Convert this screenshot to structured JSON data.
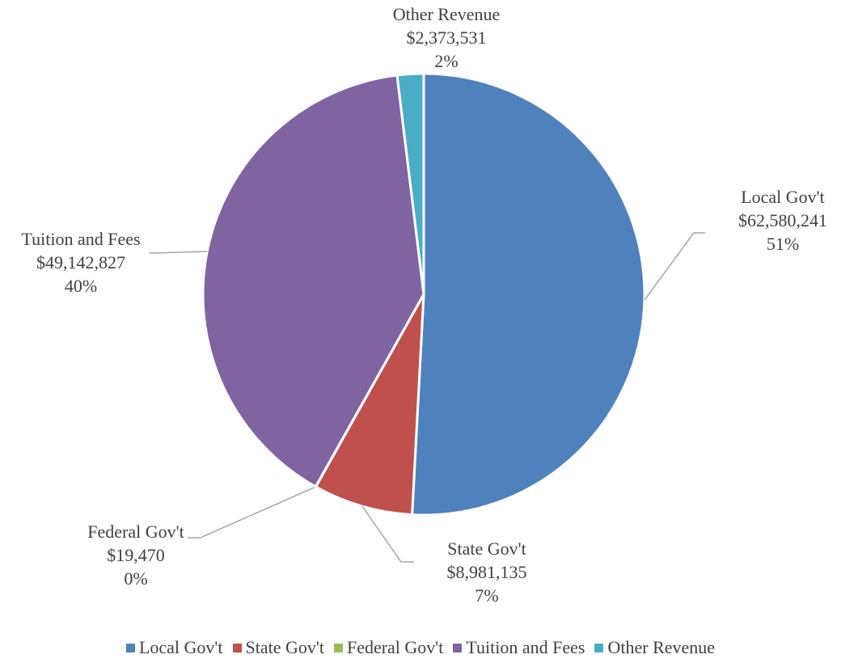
{
  "chart_data": {
    "type": "pie",
    "title": "",
    "slices": [
      {
        "name": "Local Gov't",
        "value": 62580241,
        "value_label": "$62,580,241",
        "percent_label": "51%",
        "color": "#4F81BD"
      },
      {
        "name": "State Gov't",
        "value": 8981135,
        "value_label": "$8,981,135",
        "percent_label": "7%",
        "color": "#C0504D"
      },
      {
        "name": "Federal Gov't",
        "value": 19470,
        "value_label": "$19,470",
        "percent_label": "0%",
        "color": "#9BBB59"
      },
      {
        "name": "Tuition and Fees",
        "value": 49142827,
        "value_label": "$49,142,827",
        "percent_label": "40%",
        "color": "#8064A2"
      },
      {
        "name": "Other Revenue",
        "value": 2373531,
        "value_label": "$2,373,531",
        "percent_label": "2%",
        "color": "#4BACC6"
      }
    ],
    "legend_position": "bottom",
    "start_angle": "12 o'clock",
    "direction": "clockwise",
    "leader_line_color": "#A6A6A6"
  }
}
